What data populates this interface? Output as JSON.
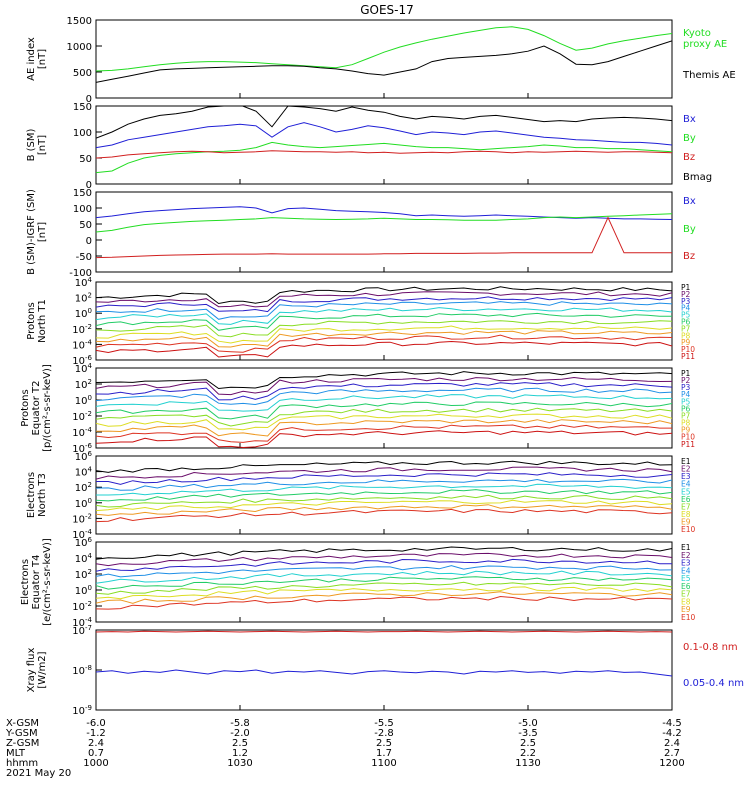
{
  "title": "GOES-17",
  "palette": {
    "black": "#000000",
    "green": "#22dd22",
    "blue": "#1f1fd6",
    "red": "#d11f1f",
    "p_colors": [
      "#000000",
      "#6a0d6a",
      "#2a1fc8",
      "#1f8fe6",
      "#22d0d0",
      "#22cc66",
      "#88dd22",
      "#dddd22",
      "#ee9922",
      "#dd3322",
      "#cc1111"
    ],
    "e_colors": [
      "#000000",
      "#6a0d6a",
      "#2a1fc8",
      "#1f8fe6",
      "#22d0d0",
      "#22cc66",
      "#88dd22",
      "#dddd22",
      "#ee9922",
      "#dd3322",
      "#cc1111"
    ]
  },
  "x_axis": {
    "tick_rows": [
      {
        "label": "X-GSM",
        "values": [
          "-6.0",
          "-5.8",
          "-5.5",
          "-5.0",
          "-4.5"
        ]
      },
      {
        "label": "Y-GSM",
        "values": [
          "-1.2",
          "-2.0",
          "-2.8",
          "-3.5",
          "-4.2"
        ]
      },
      {
        "label": "Z-GSM",
        "values": [
          "2.4",
          "2.5",
          "2.5",
          "2.5",
          "2.4"
        ]
      },
      {
        "label": "MLT",
        "values": [
          "0.7",
          "1.2",
          "1.7",
          "2.2",
          "2.7"
        ]
      },
      {
        "label": "hhmm",
        "values": [
          "1000",
          "1030",
          "1100",
          "1130",
          "1200"
        ]
      }
    ],
    "date": "2021 May 20"
  },
  "chart_data": [
    {
      "type": "line",
      "ylabel": [
        "AE index",
        "[nT]"
      ],
      "ylim": [
        0,
        1500
      ],
      "yticks": [
        "0",
        "500",
        "1000",
        "1500"
      ],
      "series": [
        {
          "name": "Kyoto proxy AE",
          "color": "green",
          "values": [
            520,
            530,
            560,
            600,
            640,
            670,
            690,
            700,
            700,
            690,
            680,
            660,
            640,
            620,
            600,
            580,
            640,
            760,
            880,
            980,
            1060,
            1130,
            1190,
            1250,
            1300,
            1350,
            1370,
            1320,
            1200,
            1050,
            920,
            960,
            1040,
            1100,
            1150,
            1200,
            1240
          ]
        },
        {
          "name": "Themis AE",
          "color": "black",
          "values": [
            300,
            360,
            420,
            480,
            540,
            560,
            570,
            580,
            590,
            600,
            610,
            620,
            620,
            610,
            580,
            560,
            520,
            470,
            440,
            500,
            560,
            700,
            760,
            780,
            800,
            820,
            850,
            900,
            1000,
            850,
            650,
            640,
            700,
            800,
            900,
            1000,
            1100
          ]
        }
      ],
      "legend": [
        "Kyoto",
        "proxy AE",
        "Themis AE"
      ]
    },
    {
      "type": "line",
      "ylabel": [
        "B (SM)",
        "[nT]"
      ],
      "ylim": [
        0,
        150
      ],
      "yticks": [
        "0",
        "50",
        "100",
        "150"
      ],
      "series": [
        {
          "name": "Bx",
          "color": "blue",
          "values": [
            70,
            75,
            85,
            90,
            95,
            100,
            105,
            110,
            112,
            115,
            112,
            90,
            110,
            118,
            110,
            100,
            105,
            112,
            108,
            102,
            95,
            100,
            98,
            95,
            100,
            102,
            98,
            94,
            90,
            88,
            85,
            84,
            82,
            80,
            80,
            78,
            75
          ]
        },
        {
          "name": "By",
          "color": "green",
          "values": [
            22,
            25,
            40,
            50,
            55,
            58,
            60,
            62,
            63,
            65,
            70,
            80,
            75,
            72,
            70,
            72,
            74,
            76,
            78,
            75,
            72,
            70,
            70,
            68,
            66,
            68,
            70,
            72,
            75,
            73,
            70,
            70,
            68,
            68,
            66,
            64,
            62
          ]
        },
        {
          "name": "Bz",
          "color": "red",
          "values": [
            50,
            52,
            56,
            58,
            60,
            62,
            63,
            62,
            60,
            61,
            62,
            64,
            63,
            62,
            62,
            61,
            62,
            60,
            61,
            59,
            60,
            61,
            60,
            62,
            63,
            62,
            60,
            62,
            61,
            62,
            63,
            62,
            61,
            62,
            62,
            61,
            60
          ]
        },
        {
          "name": "Bmag",
          "color": "black",
          "values": [
            88,
            100,
            115,
            125,
            132,
            135,
            140,
            148,
            150,
            152,
            140,
            110,
            150,
            148,
            145,
            140,
            148,
            142,
            138,
            130,
            125,
            130,
            128,
            125,
            130,
            132,
            128,
            124,
            120,
            122,
            120,
            125,
            127,
            128,
            127,
            125,
            122
          ]
        }
      ],
      "legend": [
        "Bx",
        "By",
        "Bz",
        "Bmag"
      ]
    },
    {
      "type": "line",
      "ylabel": [
        "B (SM)-IGRF (SM)",
        "[nT]"
      ],
      "ylim": [
        -100,
        150
      ],
      "yticks": [
        "-100",
        "-50",
        "0",
        "50",
        "100",
        "150"
      ],
      "series": [
        {
          "name": "Bx",
          "color": "blue",
          "values": [
            70,
            75,
            82,
            88,
            92,
            95,
            98,
            100,
            102,
            104,
            100,
            85,
            98,
            100,
            96,
            92,
            90,
            88,
            86,
            82,
            76,
            78,
            76,
            74,
            76,
            78,
            76,
            74,
            72,
            70,
            68,
            70,
            68,
            66,
            66,
            65,
            64
          ]
        },
        {
          "name": "By",
          "color": "green",
          "values": [
            25,
            30,
            40,
            48,
            52,
            55,
            58,
            60,
            62,
            64,
            66,
            70,
            68,
            66,
            65,
            64,
            65,
            66,
            68,
            66,
            64,
            64,
            63,
            62,
            62,
            62,
            64,
            66,
            70,
            72,
            70,
            72,
            74,
            76,
            78,
            80,
            82
          ]
        },
        {
          "name": "Bz",
          "color": "red",
          "values": [
            -55,
            -54,
            -52,
            -50,
            -48,
            -47,
            -46,
            -45,
            -44,
            -44,
            -44,
            -43,
            -44,
            -44,
            -44,
            -44,
            -44,
            -44,
            -43,
            -43,
            -42,
            -42,
            -42,
            -42,
            -41,
            -41,
            -40,
            -40,
            -40,
            -40,
            -40,
            -40,
            70,
            -40,
            -40,
            -40,
            -40
          ]
        }
      ],
      "legend": [
        "Bx",
        "By",
        "Bz"
      ]
    },
    {
      "type": "line",
      "log_scale": true,
      "ylabel": [
        "Protons",
        "North T1"
      ],
      "ylim_exp": [
        -6,
        4
      ],
      "yticks": [
        "10^4",
        "10^2",
        "10^0",
        "10^-2",
        "10^-4",
        "10^-6"
      ],
      "channel_base_log": [
        2.0,
        1.4,
        0.8,
        0.1,
        -0.6,
        -1.4,
        -2.2,
        -3.0,
        -3.6,
        -4.2,
        -5.0
      ],
      "legend": [
        "P1",
        "P2",
        "P3",
        "P4",
        "P5",
        "P6",
        "P7",
        "P8",
        "P9",
        "P10",
        "P11"
      ]
    },
    {
      "type": "line",
      "log_scale": true,
      "ylabel": [
        "Protons",
        "Equator T2",
        "[p/(cm²-s-sr-keV)]"
      ],
      "ylim_exp": [
        -6,
        4
      ],
      "yticks": [
        "10^4",
        "10^2",
        "10^0",
        "10^-2",
        "10^-4",
        "10^-6"
      ],
      "channel_base_log": [
        2.2,
        1.5,
        0.8,
        0.1,
        -0.7,
        -1.6,
        -2.4,
        -3.1,
        -3.8,
        -4.5,
        -5.2
      ],
      "legend": [
        "P1",
        "P2",
        "P3",
        "P4",
        "P5",
        "P6",
        "P7",
        "P8",
        "P9",
        "P10",
        "P11"
      ]
    },
    {
      "type": "line",
      "log_scale": true,
      "ylabel": [
        "Electrons",
        "North T3"
      ],
      "ylim_exp": [
        -4,
        6
      ],
      "yticks": [
        "10^6",
        "10^4",
        "10^2",
        "10^0",
        "10^-2",
        "10^-4"
      ],
      "channel_base_log": [
        4.0,
        3.2,
        2.5,
        1.7,
        1.0,
        0.3,
        -0.4,
        -1.0,
        -1.6,
        -2.2
      ],
      "legend": [
        "E1",
        "E2",
        "E3",
        "E4",
        "E5",
        "E6",
        "E7",
        "E8",
        "E9",
        "E10"
      ]
    },
    {
      "type": "line",
      "log_scale": true,
      "ylabel": [
        "Electrons",
        "Equator T4",
        "[e/(cm²-s-sr-keV)]"
      ],
      "ylim_exp": [
        -4,
        6
      ],
      "yticks": [
        "10^6",
        "10^4",
        "10^2",
        "10^0",
        "10^-2",
        "10^-4"
      ],
      "channel_base_log": [
        4.0,
        3.2,
        2.5,
        1.7,
        1.0,
        0.3,
        -0.4,
        -1.0,
        -1.6,
        -2.2
      ],
      "legend": [
        "E1",
        "E2",
        "E3",
        "E4",
        "E5",
        "E6",
        "E7",
        "E8",
        "E9",
        "E10"
      ]
    },
    {
      "type": "line",
      "log_scale": true,
      "ylabel": [
        "Xray flux",
        "[W/m2]"
      ],
      "ylim_exp": [
        -9,
        -7
      ],
      "yticks": [
        "10^-7",
        "10^-8",
        "10^-9"
      ],
      "series": [
        {
          "name": "0.1-0.8 nm",
          "color": "red",
          "log_values": [
            -7.05,
            -7.04,
            -7.05,
            -7.03,
            -7.04,
            -7.05,
            -7.04,
            -7.03,
            -7.04,
            -7.05,
            -7.04,
            -7.03,
            -7.04,
            -7.05,
            -7.04,
            -7.03,
            -7.04,
            -7.05,
            -7.04,
            -7.04,
            -7.03,
            -7.04,
            -7.05,
            -7.04,
            -7.03,
            -7.04,
            -7.05,
            -7.04,
            -7.03,
            -7.04,
            -7.05,
            -7.04,
            -7.03,
            -7.04,
            -7.05,
            -7.04,
            -7.05
          ]
        },
        {
          "name": "0.05-0.4 nm",
          "color": "blue",
          "log_values": [
            -8.05,
            -8.02,
            -8.08,
            -8.03,
            -8.06,
            -8.0,
            -8.05,
            -8.1,
            -8.02,
            -8.04,
            -8.0,
            -8.08,
            -8.03,
            -8.05,
            -8.02,
            -8.06,
            -8.1,
            -8.04,
            -8.02,
            -8.05,
            -8.07,
            -8.03,
            -8.05,
            -8.1,
            -8.03,
            -8.05,
            -8.02,
            -8.06,
            -8.04,
            -8.08,
            -8.03,
            -8.05,
            -8.02,
            -8.06,
            -8.05,
            -8.1,
            -8.15
          ]
        }
      ],
      "legend": [
        "0.1-0.8 nm",
        "0.05-0.4 nm"
      ]
    }
  ]
}
